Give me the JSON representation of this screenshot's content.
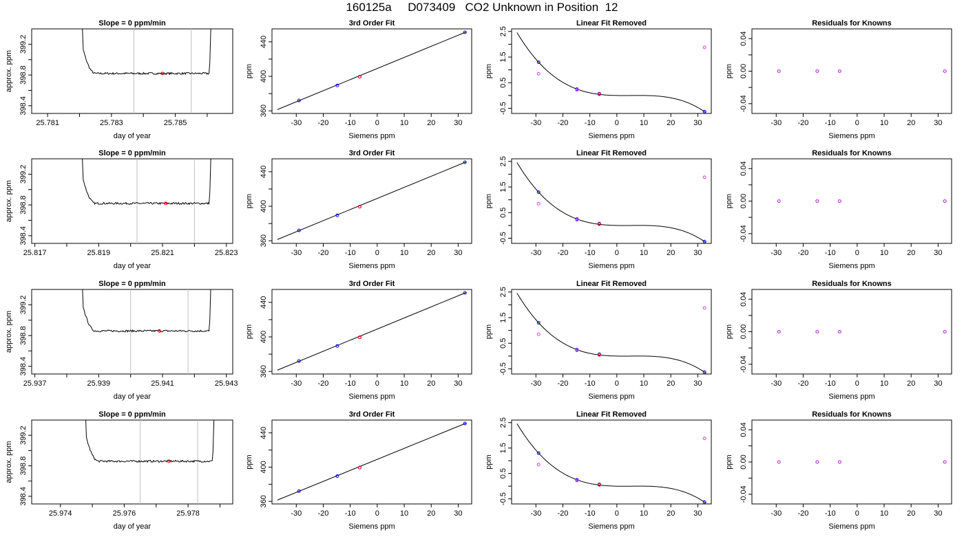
{
  "figure": {
    "title": "160125a     D073409   CO2 Unknown in Position  12",
    "colors": {
      "trace": "#000000",
      "window": "#bebebe",
      "point_red": "#ff0000",
      "point_blue": "#0000ff",
      "point_magenta": "#e040e0"
    }
  },
  "chart_data": [
    {
      "type": "line",
      "panel": "trace",
      "row": 1,
      "title": "Slope =  0  ppm/min",
      "xlabel": "day of year",
      "ylabel": "approx. ppm",
      "xlim": [
        25.7805,
        25.7868
      ],
      "ylim": [
        398.3,
        399.4
      ],
      "xticks": [
        25.781,
        25.782,
        25.783,
        25.784,
        25.785,
        25.786
      ],
      "xticklabels": [
        "25.781",
        "",
        "25.783",
        "",
        "25.785",
        ""
      ],
      "yticks": [
        398.4,
        398.6,
        398.8,
        399.0,
        399.2
      ],
      "yticklabels": [
        "398.4",
        "",
        "398.8",
        "",
        "399.2"
      ],
      "start": 25.7819,
      "end": 25.7862,
      "level": 398.82,
      "window": [
        25.7837,
        25.7855
      ],
      "mean_point": [
        25.7846,
        398.82
      ]
    },
    {
      "type": "scatter",
      "panel": "fit",
      "row": 1,
      "title": "3rd Order Fit",
      "xlabel": "Siemens ppm",
      "ylabel": "ppm",
      "xlim": [
        -39,
        35
      ],
      "ylim": [
        357,
        455
      ],
      "xticks": [
        -30,
        -20,
        -10,
        0,
        10,
        20,
        30
      ],
      "xticklabels": [
        "-30",
        "-20",
        "-10",
        "0",
        "10",
        "20",
        "30"
      ],
      "yticks": [
        360,
        380,
        400,
        420,
        440
      ],
      "yticklabels": [
        "360",
        "",
        "400",
        "",
        "440"
      ],
      "line_x": [
        -37,
        33
      ],
      "line_y": [
        361.5,
        451.5
      ],
      "points": [
        [
          -29,
          372,
          "blue"
        ],
        [
          -14.8,
          389.5,
          "blue"
        ],
        [
          -6.5,
          399.5,
          "blue"
        ],
        [
          -6.5,
          399.5,
          "red"
        ],
        [
          32.5,
          451,
          "blue"
        ]
      ]
    },
    {
      "type": "scatter",
      "panel": "linear",
      "row": 1,
      "title": "Linear Fit Removed",
      "xlabel": "Siemens ppm",
      "ylabel": "ppm",
      "xlim": [
        -39,
        35
      ],
      "ylim": [
        -0.7,
        2.6
      ],
      "xticks": [
        -30,
        -20,
        -10,
        0,
        10,
        20,
        30
      ],
      "xticklabels": [
        "-30",
        "-20",
        "-10",
        "0",
        "10",
        "20",
        "30"
      ],
      "yticks": [
        -0.5,
        0,
        0.5,
        1,
        1.5,
        2,
        2.5
      ],
      "yticklabels": [
        "-0.5",
        "",
        "0.5",
        "",
        "1.5",
        "",
        "2.5"
      ],
      "curve_a": -5.95e-05,
      "curve_b": -0.000185,
      "curve_c": 0.05,
      "curve_d": 0.06,
      "curve_x": [
        -37,
        33
      ],
      "points": [
        [
          -29,
          1.3,
          "blue"
        ],
        [
          -29,
          0.85,
          "magenta"
        ],
        [
          -14.8,
          0.25,
          "blue"
        ],
        [
          -14.8,
          0.22,
          "magenta"
        ],
        [
          -6.5,
          0.07,
          "blue"
        ],
        [
          -6.5,
          0.05,
          "red"
        ],
        [
          32.5,
          -0.63,
          "blue"
        ],
        [
          32.5,
          1.88,
          "magenta"
        ]
      ]
    },
    {
      "type": "scatter",
      "panel": "resid",
      "row": 1,
      "title": "Residuals for Knowns",
      "xlabel": "Siemens ppm",
      "ylabel": "ppm",
      "xlim": [
        -39,
        35
      ],
      "ylim": [
        -0.052,
        0.052
      ],
      "xticks": [
        -30,
        -20,
        -10,
        0,
        10,
        20,
        30
      ],
      "xticklabels": [
        "-30",
        "-20",
        "-10",
        "0",
        "10",
        "20",
        "30"
      ],
      "yticks": [
        -0.04,
        -0.02,
        0,
        0.02,
        0.04
      ],
      "yticklabels": [
        "-0.04",
        "",
        "0.00",
        "",
        "0.04"
      ],
      "points": [
        [
          -29,
          0,
          "blue"
        ],
        [
          -14.8,
          0,
          "blue"
        ],
        [
          -6.5,
          0,
          "blue"
        ],
        [
          32.5,
          0,
          "blue"
        ],
        [
          -29,
          0,
          "magenta"
        ],
        [
          -14.8,
          0,
          "magenta"
        ],
        [
          -6.5,
          0,
          "magenta"
        ],
        [
          32.5,
          0,
          "magenta"
        ]
      ]
    },
    {
      "type": "line",
      "panel": "trace",
      "row": 2,
      "title": "Slope =  0  ppm/min",
      "xlabel": "day of year",
      "ylabel": "approx. ppm",
      "xlim": [
        25.8169,
        25.8232
      ],
      "ylim": [
        398.3,
        399.4
      ],
      "xticks": [
        25.817,
        25.818,
        25.819,
        25.82,
        25.821,
        25.822,
        25.823
      ],
      "xticklabels": [
        "25.817",
        "",
        "25.819",
        "",
        "25.821",
        "",
        "25.823"
      ],
      "yticks": [
        398.4,
        398.6,
        398.8,
        399.0,
        399.2
      ],
      "yticklabels": [
        "398.4",
        "",
        "398.8",
        "",
        "399.2"
      ],
      "start": 25.8183,
      "end": 25.8226,
      "level": 398.82,
      "window": [
        25.8202,
        25.822
      ],
      "mean_point": [
        25.8211,
        398.82
      ]
    },
    {
      "type": "scatter",
      "panel": "fit",
      "row": 2,
      "title": "3rd Order Fit",
      "xlabel": "Siemens ppm",
      "ylabel": "ppm",
      "xlim": [
        -39,
        35
      ],
      "ylim": [
        357,
        455
      ],
      "xticks": [
        -30,
        -20,
        -10,
        0,
        10,
        20,
        30
      ],
      "xticklabels": [
        "-30",
        "-20",
        "-10",
        "0",
        "10",
        "20",
        "30"
      ],
      "yticks": [
        360,
        380,
        400,
        420,
        440
      ],
      "yticklabels": [
        "360",
        "",
        "400",
        "",
        "440"
      ],
      "line_x": [
        -37,
        33
      ],
      "line_y": [
        361.5,
        451.5
      ],
      "points": [
        [
          -29,
          372,
          "blue"
        ],
        [
          -14.8,
          389.5,
          "blue"
        ],
        [
          -6.5,
          399.5,
          "blue"
        ],
        [
          -6.5,
          399.5,
          "red"
        ],
        [
          32.5,
          451,
          "blue"
        ]
      ]
    },
    {
      "type": "scatter",
      "panel": "linear",
      "row": 2,
      "title": "Linear Fit Removed",
      "xlabel": "Siemens ppm",
      "ylabel": "ppm",
      "xlim": [
        -39,
        35
      ],
      "ylim": [
        -0.7,
        2.6
      ],
      "xticks": [
        -30,
        -20,
        -10,
        0,
        10,
        20,
        30
      ],
      "xticklabels": [
        "-30",
        "-20",
        "-10",
        "0",
        "10",
        "20",
        "30"
      ],
      "yticks": [
        -0.5,
        0,
        0.5,
        1,
        1.5,
        2,
        2.5
      ],
      "yticklabels": [
        "-0.5",
        "",
        "0.5",
        "",
        "1.5",
        "",
        "2.5"
      ],
      "curve_a": -5.95e-05,
      "curve_b": -0.000185,
      "curve_c": 0.05,
      "curve_d": 0.06,
      "curve_x": [
        -37,
        33
      ],
      "points": [
        [
          -29,
          1.3,
          "blue"
        ],
        [
          -29,
          0.85,
          "magenta"
        ],
        [
          -14.8,
          0.25,
          "blue"
        ],
        [
          -14.8,
          0.22,
          "magenta"
        ],
        [
          -6.5,
          0.07,
          "blue"
        ],
        [
          -6.5,
          0.05,
          "red"
        ],
        [
          32.5,
          -0.63,
          "blue"
        ],
        [
          32.5,
          1.88,
          "magenta"
        ]
      ]
    },
    {
      "type": "scatter",
      "panel": "resid",
      "row": 2,
      "title": "Residuals for Knowns",
      "xlabel": "Siemens ppm",
      "ylabel": "ppm",
      "xlim": [
        -39,
        35
      ],
      "ylim": [
        -0.052,
        0.052
      ],
      "xticks": [
        -30,
        -20,
        -10,
        0,
        10,
        20,
        30
      ],
      "xticklabels": [
        "-30",
        "-20",
        "-10",
        "0",
        "10",
        "20",
        "30"
      ],
      "yticks": [
        -0.04,
        -0.02,
        0,
        0.02,
        0.04
      ],
      "yticklabels": [
        "-0.04",
        "",
        "0.00",
        "",
        "0.04"
      ],
      "points": [
        [
          -29,
          0,
          "blue"
        ],
        [
          -14.8,
          0,
          "blue"
        ],
        [
          -6.5,
          0,
          "blue"
        ],
        [
          32.5,
          0,
          "blue"
        ],
        [
          -29,
          0,
          "magenta"
        ],
        [
          -14.8,
          0,
          "magenta"
        ],
        [
          -6.5,
          0,
          "magenta"
        ],
        [
          32.5,
          0,
          "magenta"
        ]
      ]
    },
    {
      "type": "line",
      "panel": "trace",
      "row": 3,
      "title": "Slope =  0  ppm/min",
      "xlabel": "day of year",
      "ylabel": "approx. ppm",
      "xlim": [
        25.9369,
        25.9432
      ],
      "ylim": [
        398.3,
        399.4
      ],
      "xticks": [
        25.937,
        25.938,
        25.939,
        25.94,
        25.941,
        25.942,
        25.943
      ],
      "xticklabels": [
        "25.937",
        "",
        "25.939",
        "",
        "25.941",
        "",
        "25.943"
      ],
      "yticks": [
        398.4,
        398.6,
        398.8,
        399.0,
        399.2
      ],
      "yticklabels": [
        "398.4",
        "",
        "398.8",
        "",
        "399.2"
      ],
      "start": 25.9383,
      "end": 25.9426,
      "level": 398.86,
      "window": [
        25.94,
        25.9418
      ],
      "mean_point": [
        25.9409,
        398.86
      ]
    },
    {
      "type": "scatter",
      "panel": "fit",
      "row": 3,
      "title": "3rd Order Fit",
      "xlabel": "Siemens ppm",
      "ylabel": "ppm",
      "xlim": [
        -39,
        35
      ],
      "ylim": [
        357,
        455
      ],
      "xticks": [
        -30,
        -20,
        -10,
        0,
        10,
        20,
        30
      ],
      "xticklabels": [
        "-30",
        "-20",
        "-10",
        "0",
        "10",
        "20",
        "30"
      ],
      "yticks": [
        360,
        380,
        400,
        420,
        440
      ],
      "yticklabels": [
        "360",
        "",
        "400",
        "",
        "440"
      ],
      "line_x": [
        -37,
        33
      ],
      "line_y": [
        361.5,
        451.5
      ],
      "points": [
        [
          -29,
          372,
          "blue"
        ],
        [
          -14.8,
          389.5,
          "blue"
        ],
        [
          -6.5,
          399.5,
          "blue"
        ],
        [
          -6.5,
          399.5,
          "red"
        ],
        [
          32.5,
          451,
          "blue"
        ]
      ]
    },
    {
      "type": "scatter",
      "panel": "linear",
      "row": 3,
      "title": "Linear Fit Removed",
      "xlabel": "Siemens ppm",
      "ylabel": "ppm",
      "xlim": [
        -39,
        35
      ],
      "ylim": [
        -0.7,
        2.6
      ],
      "xticks": [
        -30,
        -20,
        -10,
        0,
        10,
        20,
        30
      ],
      "xticklabels": [
        "-30",
        "-20",
        "-10",
        "0",
        "10",
        "20",
        "30"
      ],
      "yticks": [
        -0.5,
        0,
        0.5,
        1,
        1.5,
        2,
        2.5
      ],
      "yticklabels": [
        "-0.5",
        "",
        "0.5",
        "",
        "1.5",
        "",
        "2.5"
      ],
      "curve_a": -5.95e-05,
      "curve_b": -0.000185,
      "curve_c": 0.05,
      "curve_d": 0.06,
      "curve_x": [
        -37,
        33
      ],
      "points": [
        [
          -29,
          1.3,
          "blue"
        ],
        [
          -29,
          0.85,
          "magenta"
        ],
        [
          -14.8,
          0.25,
          "blue"
        ],
        [
          -14.8,
          0.22,
          "magenta"
        ],
        [
          -6.5,
          0.07,
          "blue"
        ],
        [
          -6.5,
          0.05,
          "red"
        ],
        [
          32.5,
          -0.63,
          "blue"
        ],
        [
          32.5,
          1.88,
          "magenta"
        ]
      ]
    },
    {
      "type": "scatter",
      "panel": "resid",
      "row": 3,
      "title": "Residuals for Knowns",
      "xlabel": "Siemens ppm",
      "ylabel": "ppm",
      "xlim": [
        -39,
        35
      ],
      "ylim": [
        -0.052,
        0.052
      ],
      "xticks": [
        -30,
        -20,
        -10,
        0,
        10,
        20,
        30
      ],
      "xticklabels": [
        "-30",
        "-20",
        "-10",
        "0",
        "10",
        "20",
        "30"
      ],
      "yticks": [
        -0.04,
        -0.02,
        0,
        0.02,
        0.04
      ],
      "yticklabels": [
        "-0.04",
        "",
        "0.00",
        "",
        "0.04"
      ],
      "points": [
        [
          -29,
          0,
          "blue"
        ],
        [
          -14.8,
          0,
          "blue"
        ],
        [
          -6.5,
          0,
          "blue"
        ],
        [
          32.5,
          0,
          "blue"
        ],
        [
          -29,
          0,
          "magenta"
        ],
        [
          -14.8,
          0,
          "magenta"
        ],
        [
          -6.5,
          0,
          "magenta"
        ],
        [
          32.5,
          0,
          "magenta"
        ]
      ]
    },
    {
      "type": "line",
      "panel": "trace",
      "row": 4,
      "title": "Slope =  0  ppm/min",
      "xlabel": "day of year",
      "ylabel": "approx. ppm",
      "xlim": [
        25.9731,
        25.9794
      ],
      "ylim": [
        398.3,
        399.4
      ],
      "xticks": [
        25.974,
        25.975,
        25.976,
        25.977,
        25.978,
        25.979
      ],
      "xticklabels": [
        "25.974",
        "",
        "25.976",
        "",
        "25.978",
        ""
      ],
      "yticks": [
        398.4,
        398.6,
        398.8,
        399.0,
        399.2
      ],
      "yticklabels": [
        "398.4",
        "",
        "398.8",
        "",
        "399.2"
      ],
      "start": 25.9746,
      "end": 25.9789,
      "level": 398.86,
      "window": [
        25.9765,
        25.9783
      ],
      "mean_point": [
        25.9774,
        398.86
      ]
    },
    {
      "type": "scatter",
      "panel": "fit",
      "row": 4,
      "title": "3rd Order Fit",
      "xlabel": "Siemens ppm",
      "ylabel": "ppm",
      "xlim": [
        -39,
        35
      ],
      "ylim": [
        357,
        455
      ],
      "xticks": [
        -30,
        -20,
        -10,
        0,
        10,
        20,
        30
      ],
      "xticklabels": [
        "-30",
        "-20",
        "-10",
        "0",
        "10",
        "20",
        "30"
      ],
      "yticks": [
        360,
        380,
        400,
        420,
        440
      ],
      "yticklabels": [
        "360",
        "",
        "400",
        "",
        "440"
      ],
      "line_x": [
        -37,
        33
      ],
      "line_y": [
        361.5,
        451.5
      ],
      "points": [
        [
          -29,
          372,
          "blue"
        ],
        [
          -14.8,
          389.5,
          "blue"
        ],
        [
          -6.5,
          399.5,
          "blue"
        ],
        [
          -6.5,
          399.5,
          "red"
        ],
        [
          32.5,
          451,
          "blue"
        ]
      ]
    },
    {
      "type": "scatter",
      "panel": "linear",
      "row": 4,
      "title": "Linear Fit Removed",
      "xlabel": "Siemens ppm",
      "ylabel": "ppm",
      "xlim": [
        -39,
        35
      ],
      "ylim": [
        -0.7,
        2.6
      ],
      "xticks": [
        -30,
        -20,
        -10,
        0,
        10,
        20,
        30
      ],
      "xticklabels": [
        "-30",
        "-20",
        "-10",
        "0",
        "10",
        "20",
        "30"
      ],
      "yticks": [
        -0.5,
        0,
        0.5,
        1,
        1.5,
        2,
        2.5
      ],
      "yticklabels": [
        "-0.5",
        "",
        "0.5",
        "",
        "1.5",
        "",
        "2.5"
      ],
      "curve_a": -5.95e-05,
      "curve_b": -0.000185,
      "curve_c": 0.05,
      "curve_d": 0.06,
      "curve_x": [
        -37,
        33
      ],
      "points": [
        [
          -29,
          1.3,
          "blue"
        ],
        [
          -29,
          0.85,
          "magenta"
        ],
        [
          -14.8,
          0.25,
          "blue"
        ],
        [
          -14.8,
          0.22,
          "magenta"
        ],
        [
          -6.5,
          0.07,
          "blue"
        ],
        [
          -6.5,
          0.05,
          "red"
        ],
        [
          32.5,
          -0.63,
          "blue"
        ],
        [
          32.5,
          1.88,
          "magenta"
        ]
      ]
    },
    {
      "type": "scatter",
      "panel": "resid",
      "row": 4,
      "title": "Residuals for Knowns",
      "xlabel": "Siemens ppm",
      "ylabel": "ppm",
      "xlim": [
        -39,
        35
      ],
      "ylim": [
        -0.052,
        0.052
      ],
      "xticks": [
        -30,
        -20,
        -10,
        0,
        10,
        20,
        30
      ],
      "xticklabels": [
        "-30",
        "-20",
        "-10",
        "0",
        "10",
        "20",
        "30"
      ],
      "yticks": [
        -0.04,
        -0.02,
        0,
        0.02,
        0.04
      ],
      "yticklabels": [
        "-0.04",
        "",
        "0.00",
        "",
        "0.04"
      ],
      "points": [
        [
          -29,
          0,
          "blue"
        ],
        [
          -14.8,
          0,
          "blue"
        ],
        [
          -6.5,
          0,
          "blue"
        ],
        [
          32.5,
          0,
          "blue"
        ],
        [
          -29,
          0,
          "magenta"
        ],
        [
          -14.8,
          0,
          "magenta"
        ],
        [
          -6.5,
          0,
          "magenta"
        ],
        [
          32.5,
          0,
          "magenta"
        ]
      ]
    }
  ]
}
